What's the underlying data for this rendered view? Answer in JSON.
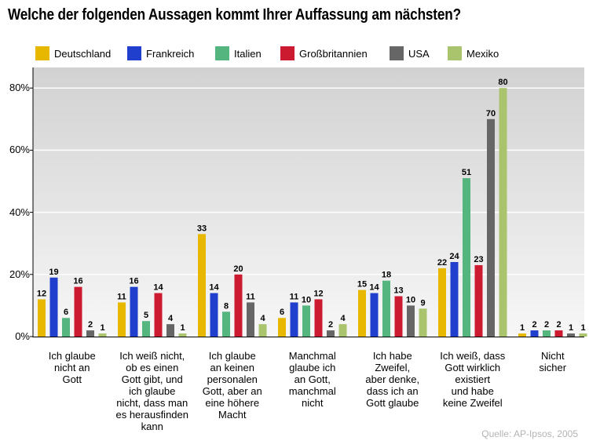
{
  "title": "Welche der folgenden Aussagen kommt Ihrer Auffassung am nächsten?",
  "source": "Quelle: AP-Ipsos, 2005",
  "colors": {
    "Deutschland": "#e8b800",
    "Frankreich": "#1f3fcc",
    "Italien": "#55b57e",
    "Großbritannien": "#cc1a30",
    "USA": "#666666",
    "Mexiko": "#a9c46c"
  },
  "chart_data": {
    "type": "bar",
    "title": "Welche der folgenden Aussagen kommt Ihrer Auffassung am nächsten?",
    "xlabel": "",
    "ylabel": "",
    "ylim": [
      0,
      85
    ],
    "yticks": [
      0,
      20,
      40,
      60,
      80
    ],
    "ytick_labels": [
      "0%",
      "20%",
      "40%",
      "60%",
      "80%"
    ],
    "grid": true,
    "legend": "top",
    "categories": [
      "Ich glaube\nnicht an\nGott",
      "Ich weiß nicht,\nob es einen\nGott gibt, und\nich glaube\nnicht, dass man\nes herausfinden\nkann",
      "Ich glaube\nan keinen\npersonalen\nGott, aber an\neine höhere\nMacht",
      "Manchmal\nglaube ich\nan Gott,\nmanchmal\nnicht",
      "Ich habe\nZweifel,\naber denke,\ndass ich an\nGott glaube",
      "Ich weiß, dass\nGott wirklich\nexistiert\nund habe\nkeine Zweifel",
      "Nicht\nsicher"
    ],
    "series": [
      {
        "name": "Deutschland",
        "values": [
          12,
          11,
          33,
          6,
          15,
          22,
          1
        ]
      },
      {
        "name": "Frankreich",
        "values": [
          19,
          16,
          14,
          11,
          14,
          24,
          2
        ]
      },
      {
        "name": "Italien",
        "values": [
          6,
          5,
          8,
          10,
          18,
          51,
          2
        ]
      },
      {
        "name": "Großbritannien",
        "values": [
          16,
          14,
          20,
          12,
          13,
          23,
          2
        ]
      },
      {
        "name": "USA",
        "values": [
          2,
          4,
          11,
          2,
          10,
          70,
          1
        ]
      },
      {
        "name": "Mexiko",
        "values": [
          1,
          1,
          4,
          4,
          9,
          80,
          1
        ]
      }
    ]
  }
}
